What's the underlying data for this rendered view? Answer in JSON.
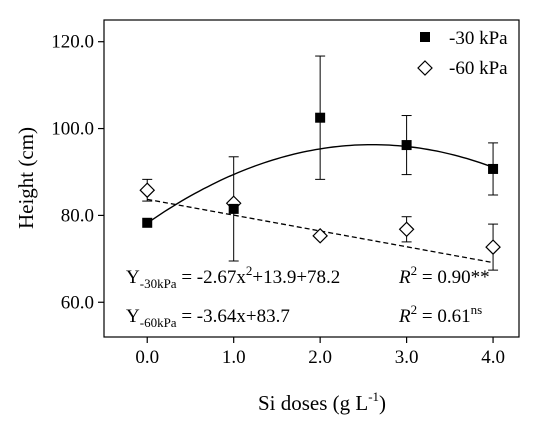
{
  "chart_data": {
    "type": "scatter",
    "xlabel": "Si doses (g L",
    "xlabel_sup": "-1",
    "xlabel_end": ")",
    "ylabel": "Height (cm)",
    "xlim": [
      -0.5,
      4.3
    ],
    "ylim": [
      52,
      125
    ],
    "x_ticks": [
      0.0,
      1.0,
      2.0,
      3.0,
      4.0
    ],
    "x_tick_labels": [
      "0.0",
      "1.0",
      "2.0",
      "3.0",
      "4.0"
    ],
    "y_ticks": [
      60,
      80,
      100,
      120
    ],
    "y_tick_labels": [
      "60.0",
      "80.0",
      "100.0",
      "120.0"
    ],
    "legend_position": "top-right",
    "series": [
      {
        "name": "-30 kPa",
        "marker": "square-filled",
        "x": [
          0,
          1,
          2,
          3,
          4
        ],
        "y": [
          78.3,
          81.5,
          102.5,
          96.2,
          90.7
        ],
        "error": [
          0,
          12.0,
          14.2,
          6.8,
          6.0
        ],
        "fit": {
          "type": "quadratic",
          "a": -2.67,
          "b": 13.9,
          "c": 78.2,
          "style": "solid"
        }
      },
      {
        "name": "-60 kPa",
        "marker": "diamond-open",
        "x": [
          0,
          1,
          2,
          3,
          4
        ],
        "y": [
          85.8,
          82.8,
          75.3,
          76.8,
          72.7
        ],
        "error": [
          2.5,
          0,
          0,
          2.9,
          5.3
        ],
        "fit": {
          "type": "linear",
          "a": -3.64,
          "b": 83.7,
          "style": "dashed"
        }
      }
    ],
    "annotations": [
      {
        "y_base": "Y",
        "y_sub": "-30kPa",
        "equation_a": " = -2.67x",
        "equation_sup": "2",
        "equation_b": "+13.9+78.2",
        "r2_symbol": "R",
        "r2_sup": "2",
        "r2_value": " = 0.90**"
      },
      {
        "y_base": "Y",
        "y_sub": "-60kPa",
        "equation_a": " = -3.64x+83.7",
        "r2_symbol": "R",
        "r2_sup": "2",
        "r2_value": " = 0.61",
        "r2_value_sup": "ns"
      }
    ]
  }
}
